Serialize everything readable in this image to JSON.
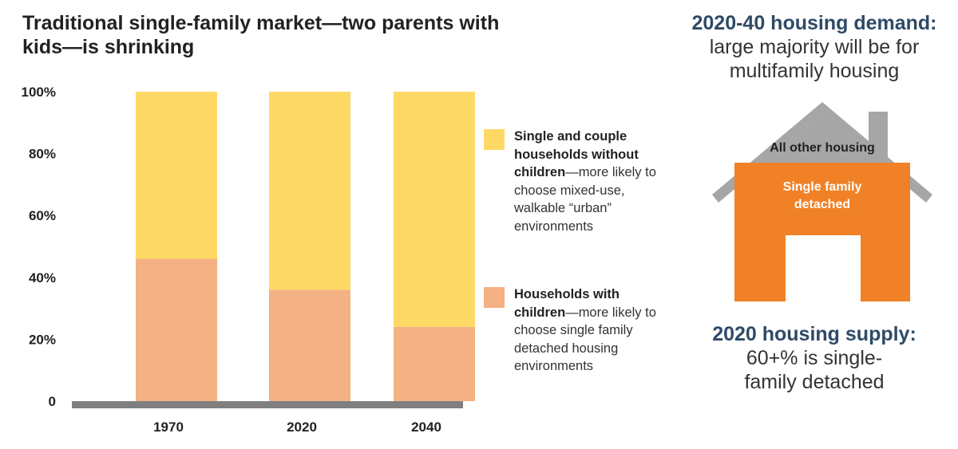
{
  "title": "Traditional single-family market—two parents with kids—is shrinking",
  "chart_data": {
    "type": "bar",
    "stacked": true,
    "categories": [
      "1970",
      "2020",
      "2040"
    ],
    "series": [
      {
        "name": "Households with children",
        "values": [
          46,
          36,
          24
        ],
        "color": "#f4b183"
      },
      {
        "name": "Single and couple households without children",
        "values": [
          54,
          64,
          76
        ],
        "color": "#fed966"
      }
    ],
    "ylim": [
      0,
      100
    ],
    "yticks": [
      "0",
      "20%",
      "40%",
      "60%",
      "80%",
      "100%"
    ],
    "yticks_values": [
      0,
      20,
      40,
      60,
      80,
      100
    ],
    "axis_color": "#7f7f7f",
    "grid": false,
    "legend_position": "right"
  },
  "legend": [
    {
      "bold": "Single and couple households without children",
      "rest": "—more likely to choose mixed-use, walkable “urban” environments",
      "color": "#fed966"
    },
    {
      "bold": "Households with children",
      "rest": "—more likely to choose single family detached housing environments",
      "color": "#f4b183"
    }
  ],
  "right_panel": {
    "demand_heading": "2020-40 housing demand:",
    "demand_text": "large majority will be for multifamily housing",
    "house_roof_label": "All other housing",
    "house_body_label": "Single family detached",
    "supply_heading": "2020 housing supply:",
    "supply_text": "60+% is single-family detached",
    "roof_color": "#a6a6a6",
    "body_color": "#f08126"
  }
}
